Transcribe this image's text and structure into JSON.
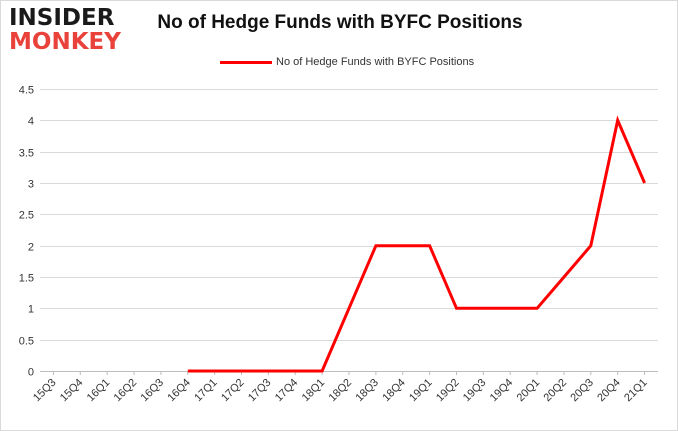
{
  "brand": {
    "logo_top": "INSIDER",
    "logo_bottom": "MONKEY"
  },
  "chart_data": {
    "type": "line",
    "title": "No of Hedge Funds with BYFC Positions",
    "xlabel": "",
    "ylabel": "",
    "categories": [
      "15Q3",
      "15Q4",
      "16Q1",
      "16Q2",
      "16Q3",
      "16Q4",
      "17Q1",
      "17Q2",
      "17Q3",
      "17Q4",
      "18Q1",
      "18Q2",
      "18Q3",
      "18Q4",
      "19Q1",
      "19Q2",
      "19Q3",
      "19Q4",
      "20Q1",
      "20Q2",
      "20Q3",
      "20Q4",
      "21Q1"
    ],
    "series": [
      {
        "name": "No of Hedge Funds with BYFC Positions",
        "color": "#ff0000",
        "values": [
          null,
          null,
          null,
          null,
          null,
          0,
          0,
          0,
          0,
          0,
          0,
          1,
          2,
          2,
          2,
          1,
          1,
          1,
          1,
          1.5,
          2,
          4,
          3
        ]
      }
    ],
    "ylim": [
      0,
      4.5
    ],
    "yticks": [
      "0",
      "0.5",
      "1",
      "1.5",
      "2",
      "2.5",
      "3",
      "3.5",
      "4",
      "4.5"
    ],
    "grid": true,
    "legend_position": "top-center"
  }
}
